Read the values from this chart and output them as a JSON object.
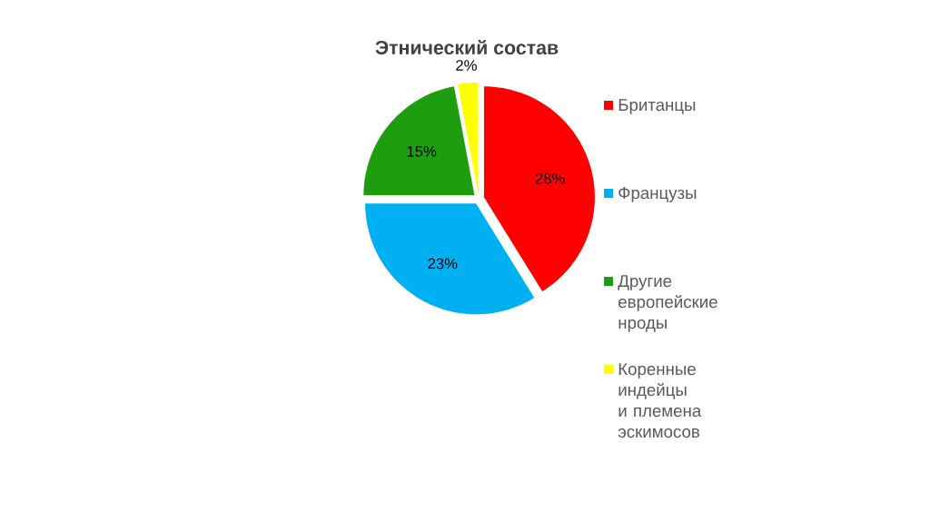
{
  "chart_data": {
    "type": "pie",
    "title": "Этнический состав",
    "categories": [
      "Британцы",
      "Французы",
      "Другие европейские нроды",
      "Коренные индейцы и племена эскимосов"
    ],
    "values": [
      28,
      23,
      15,
      2
    ],
    "colors": [
      "#ff0000",
      "#00b0f0",
      "#1e9e0e",
      "#ffff00"
    ],
    "value_labels": [
      "28%",
      "23%",
      "15%",
      "2%"
    ],
    "legend": "right"
  }
}
